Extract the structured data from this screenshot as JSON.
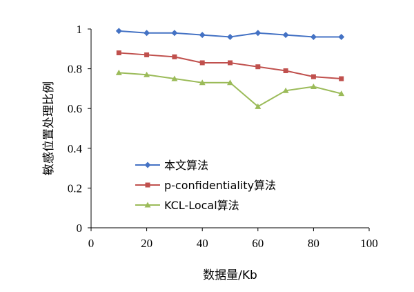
{
  "chart_data": {
    "type": "line",
    "xlabel": "数据量/Kb",
    "ylabel": "敏感位置处理比例",
    "xlim": [
      0,
      100
    ],
    "ylim": [
      0,
      1
    ],
    "xticks": [
      0,
      20,
      40,
      60,
      80,
      100
    ],
    "yticks": [
      0,
      0.2,
      0.4,
      0.6,
      0.8,
      1
    ],
    "ytick_labels": [
      "0",
      "0.2",
      "0.4",
      "0.6",
      "0.8",
      "1"
    ],
    "grid": false,
    "legend_position": "bottom-left",
    "x": [
      10,
      20,
      30,
      40,
      50,
      60,
      70,
      80,
      90
    ],
    "series": [
      {
        "name": "本文算法",
        "color": "#4472c4",
        "marker": "diamond",
        "values": [
          0.99,
          0.98,
          0.98,
          0.97,
          0.96,
          0.98,
          0.97,
          0.96,
          0.96
        ]
      },
      {
        "name": "p-confidentiality算法",
        "color": "#c0504d",
        "marker": "square",
        "values": [
          0.88,
          0.87,
          0.86,
          0.83,
          0.83,
          0.81,
          0.79,
          0.76,
          0.75
        ]
      },
      {
        "name": "KCL-Local算法",
        "color": "#9bbb59",
        "marker": "triangle",
        "values": [
          0.78,
          0.77,
          0.75,
          0.73,
          0.73,
          0.61,
          0.69,
          0.71,
          0.675
        ]
      }
    ]
  }
}
